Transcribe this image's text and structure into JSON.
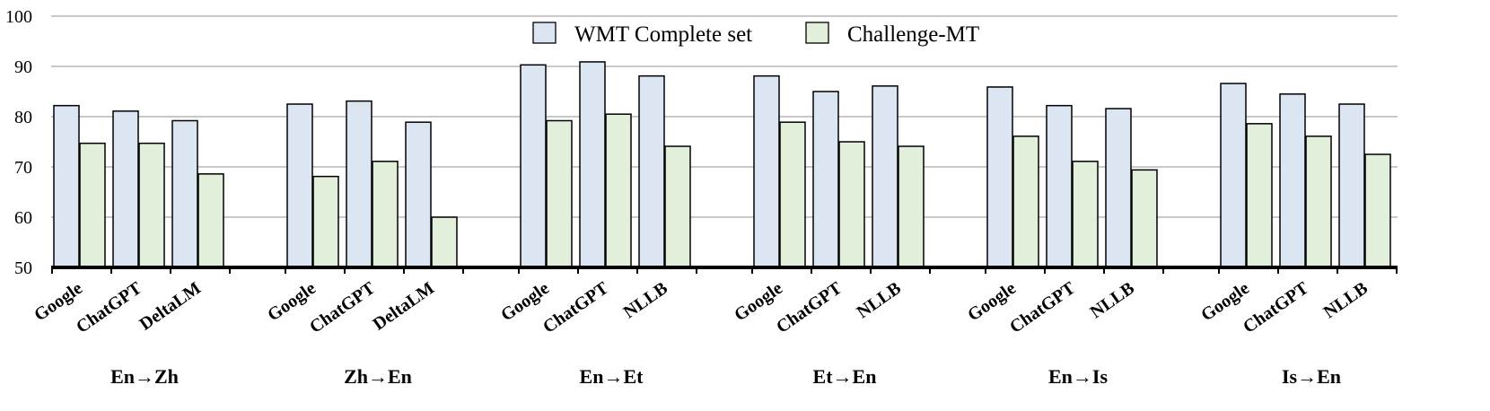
{
  "chart_data": {
    "type": "bar",
    "ylim": [
      50,
      100
    ],
    "yticks": [
      50,
      60,
      70,
      80,
      90,
      100
    ],
    "grid": true,
    "legend_position": "top-center",
    "colors": {
      "WMT Complete set": "#dce6f2",
      "Challenge-MT": "#e2efda",
      "grid": "#a6a6a6",
      "outline": "#000000"
    },
    "series": [
      {
        "name": "WMT Complete set"
      },
      {
        "name": "Challenge-MT"
      }
    ],
    "groups": [
      {
        "label": "En→Zh",
        "models": [
          {
            "name": "Google",
            "values": [
              82.2,
              74.7
            ]
          },
          {
            "name": "ChatGPT",
            "values": [
              81.1,
              74.7
            ]
          },
          {
            "name": "DeltaLM",
            "values": [
              79.2,
              68.6
            ]
          }
        ]
      },
      {
        "label": "Zh→En",
        "models": [
          {
            "name": "Google",
            "values": [
              82.5,
              68.1
            ]
          },
          {
            "name": "ChatGPT",
            "values": [
              83.1,
              71.1
            ]
          },
          {
            "name": "DeltaLM",
            "values": [
              78.9,
              60.0
            ]
          }
        ]
      },
      {
        "label": "En→Et",
        "models": [
          {
            "name": "Google",
            "values": [
              90.3,
              79.2
            ]
          },
          {
            "name": "ChatGPT",
            "values": [
              90.9,
              80.5
            ]
          },
          {
            "name": "NLLB",
            "values": [
              88.1,
              74.1
            ]
          }
        ]
      },
      {
        "label": "Et→En",
        "models": [
          {
            "name": "Google",
            "values": [
              88.1,
              78.9
            ]
          },
          {
            "name": "ChatGPT",
            "values": [
              85.0,
              75.0
            ]
          },
          {
            "name": "NLLB",
            "values": [
              86.1,
              74.1
            ]
          }
        ]
      },
      {
        "label": "En→Is",
        "models": [
          {
            "name": "Google",
            "values": [
              85.9,
              76.1
            ]
          },
          {
            "name": "ChatGPT",
            "values": [
              82.2,
              71.1
            ]
          },
          {
            "name": "NLLB",
            "values": [
              81.6,
              69.4
            ]
          }
        ]
      },
      {
        "label": "Is→En",
        "models": [
          {
            "name": "Google",
            "values": [
              86.6,
              78.6
            ]
          },
          {
            "name": "ChatGPT",
            "values": [
              84.5,
              76.1
            ]
          },
          {
            "name": "NLLB",
            "values": [
              82.5,
              72.5
            ]
          }
        ]
      }
    ]
  }
}
